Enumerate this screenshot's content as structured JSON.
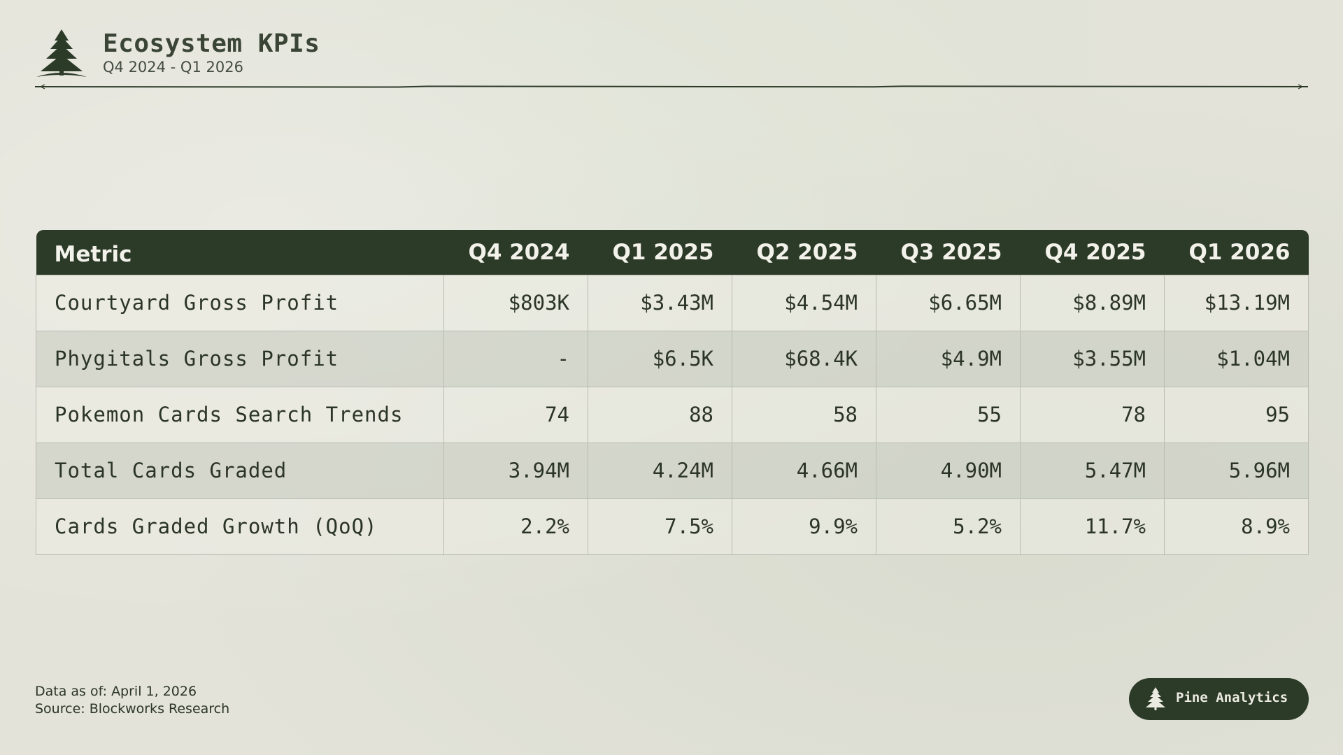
{
  "header": {
    "title": "Ecosystem KPIs",
    "subtitle": "Q4 2024 - Q1 2026",
    "logo_icon": "pine-tree-icon"
  },
  "table": {
    "columns": [
      "Metric",
      "Q4 2024",
      "Q1 2025",
      "Q2 2025",
      "Q3 2025",
      "Q4 2025",
      "Q1 2026"
    ],
    "rows": [
      {
        "metric": "Courtyard Gross Profit",
        "values": [
          "$803K",
          "$3.43M",
          "$4.54M",
          "$6.65M",
          "$8.89M",
          "$13.19M"
        ]
      },
      {
        "metric": "Phygitals Gross Profit",
        "values": [
          "-",
          "$6.5K",
          "$68.4K",
          "$4.9M",
          "$3.55M",
          "$1.04M"
        ]
      },
      {
        "metric": "Pokemon Cards Search Trends",
        "values": [
          "74",
          "88",
          "58",
          "55",
          "78",
          "95"
        ]
      },
      {
        "metric": "Total Cards Graded",
        "values": [
          "3.94M",
          "4.24M",
          "4.66M",
          "4.90M",
          "5.47M",
          "5.96M"
        ]
      },
      {
        "metric": "Cards Graded Growth (QoQ)",
        "values": [
          "2.2%",
          "7.5%",
          "9.9%",
          "5.2%",
          "11.7%",
          "8.9%"
        ]
      }
    ]
  },
  "footer": {
    "data_as_of": "Data as of: April 1, 2026",
    "source": "Source: Blockworks Research",
    "brand": "Pine Analytics",
    "brand_icon": "pine-tree-icon"
  },
  "colors": {
    "background": "#e3e3d9",
    "accent_dark_green": "#2c3a28",
    "text": "#2b3526"
  }
}
